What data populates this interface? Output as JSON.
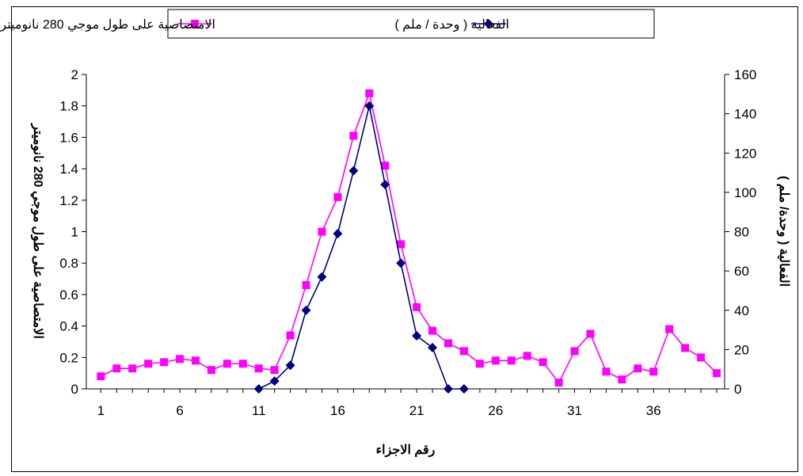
{
  "chart_data": {
    "type": "line",
    "xlabel": "رقم الاجزاء",
    "ylabel_left": "الامتصاصية على طول موجي 280 نانوميتر",
    "ylabel_right": "الفعالية ( وحدة/ ملم )",
    "ylim_left": [
      0,
      2
    ],
    "ylim_right": [
      0,
      160
    ],
    "left_ticks": [
      "0",
      "0.2",
      "0.4",
      "0.6",
      "0.8",
      "1",
      "1.2",
      "1.4",
      "1.6",
      "1.8",
      "2"
    ],
    "right_ticks": [
      "0",
      "20",
      "40",
      "60",
      "80",
      "100",
      "120",
      "140",
      "160"
    ],
    "x_ticks": [
      "1",
      "6",
      "11",
      "16",
      "21",
      "26",
      "31",
      "36"
    ],
    "grid": false,
    "legend_position": "top",
    "series": [
      {
        "name": "الامتصاصية على طول موجي 280 نانوميتر",
        "axis": "left",
        "color": "#ff00ff",
        "marker": "square",
        "x": [
          1,
          2,
          3,
          4,
          5,
          6,
          7,
          8,
          9,
          10,
          11,
          12,
          13,
          14,
          15,
          16,
          17,
          18,
          19,
          20,
          21,
          22,
          23,
          24,
          25,
          26,
          27,
          28,
          29,
          30,
          31,
          32,
          33,
          34,
          35,
          36,
          37,
          38,
          39,
          40
        ],
        "y": [
          0.08,
          0.13,
          0.13,
          0.16,
          0.17,
          0.19,
          0.18,
          0.12,
          0.16,
          0.16,
          0.13,
          0.12,
          0.34,
          0.66,
          1.0,
          1.22,
          1.61,
          1.88,
          1.42,
          0.92,
          0.52,
          0.37,
          0.29,
          0.24,
          0.16,
          0.18,
          0.18,
          0.21,
          0.17,
          0.04,
          0.24,
          0.35,
          0.11,
          0.06,
          0.13,
          0.11,
          0.38,
          0.26,
          0.2,
          0.1
        ]
      },
      {
        "name": "الفعالية ( وحدة / ملم )",
        "axis": "right",
        "color": "#000080",
        "marker": "diamond",
        "x": [
          11,
          12,
          13,
          14,
          15,
          16,
          17,
          18,
          19,
          20,
          21,
          22,
          23,
          24
        ],
        "y": [
          0,
          4,
          12,
          40,
          57,
          79,
          111,
          144,
          104,
          64,
          27,
          21,
          0,
          0
        ]
      }
    ]
  }
}
